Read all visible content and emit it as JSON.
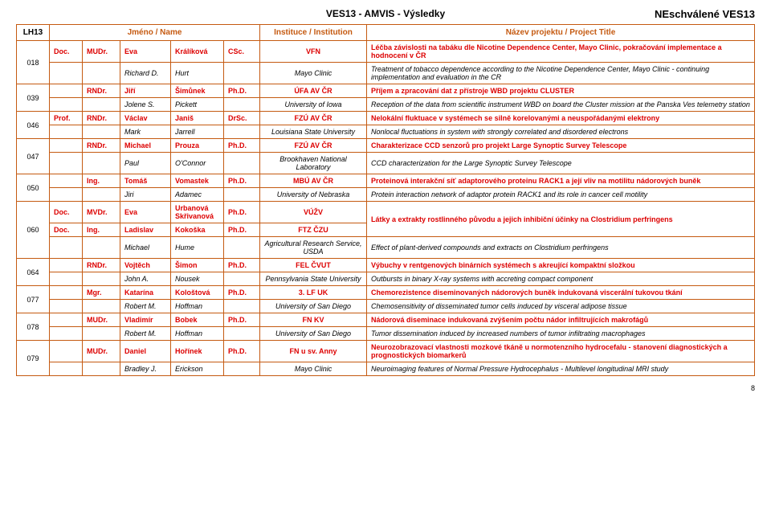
{
  "title_center": "VES13 - AMVIS - Výsledky",
  "title_right": "NEschválené VES13",
  "page_number": "8",
  "headers": {
    "lh": "LH13",
    "name": "Jméno / Name",
    "inst": "Instituce / Institution",
    "proj": "Název projektu / Project Title"
  },
  "rows": [
    {
      "id": "018",
      "a": {
        "t1": "Doc.",
        "t2": "MUDr.",
        "fn": "Eva",
        "ln": "Králíková",
        "dg": "CSc.",
        "in": "VFN",
        "pr": "Léčba závislosti na tabáku dle Nicotine Dependence Center, Mayo Clinic, pokračování implementace a hodnocení v ČR"
      },
      "b": {
        "fn": "Richard D.",
        "ln": "Hurt",
        "in": "Mayo Clinic",
        "pr": "Treatment of tobacco dependence according to the Nicotine Dependence Center, Mayo Clinic - continuing implementation and evaluation in the CR"
      }
    },
    {
      "id": "039",
      "a": {
        "t2": "RNDr.",
        "fn": "Jiří",
        "ln": "Šimůnek",
        "dg": "Ph.D.",
        "in": "ÚFA AV ČR",
        "pr": "Příjem a zpracování dat z přístroje WBD projektu CLUSTER"
      },
      "b": {
        "fn": "Jolene S.",
        "ln": "Pickett",
        "in": "University of Iowa",
        "pr": "Reception of the data from scientific instrument WBD on board the Cluster mission at the Panska Ves telemetry station"
      }
    },
    {
      "id": "046",
      "a": {
        "t1": "Prof.",
        "t2": "RNDr.",
        "fn": "Václav",
        "ln": "Janiš",
        "dg": "DrSc.",
        "in": "FZÚ AV ČR",
        "pr": "Nelokální fluktuace v systémech se silně korelovanými a neuspořádanými elektrony"
      },
      "b": {
        "fn": "Mark",
        "ln": "Jarrell",
        "in": "Louisiana State University",
        "pr": "Nonlocal fluctuations in system with strongly correlated and disordered electrons"
      }
    },
    {
      "id": "047",
      "a": {
        "t2": "RNDr.",
        "fn": "Michael",
        "ln": "Prouza",
        "dg": "Ph.D.",
        "in": "FZÚ AV ČR",
        "pr": "Charakterizace CCD senzorů pro projekt Large Synoptic Survey Telescope"
      },
      "b": {
        "fn": "Paul",
        "ln": "O'Connor",
        "in": "Brookhaven National Laboratory",
        "pr": "CCD characterization for the Large Synoptic Survey Telescope"
      }
    },
    {
      "id": "050",
      "a": {
        "t2": "Ing.",
        "fn": "Tomáš",
        "ln": "Vomastek",
        "dg": "Ph.D.",
        "in": "MBÚ AV ČR",
        "pr": "Proteinová interakční síť adaptorového proteinu RACK1 a její vliv na motilitu nádorových buněk"
      },
      "b": {
        "fn": "Jiri",
        "ln": "Adamec",
        "in": "University of Nebraska",
        "pr": "Protein interaction network of adaptor protein RACK1 and its role in cancer cell motility"
      }
    },
    {
      "id": "060",
      "a": {
        "t1": "Doc.",
        "t2": "MVDr.",
        "fn": "Eva",
        "ln": "Urbanová Skřivanová",
        "dg": "Ph.D.",
        "in": "VÚŽV",
        "pr": "Látky a extrakty rostlinného původu a jejich inhibiční účinky na Clostridium perfringens"
      },
      "a2": {
        "t1": "Doc.",
        "t2": "Ing.",
        "fn": "Ladislav",
        "ln": "Kokoška",
        "dg": "Ph.D.",
        "in": "FTZ ČZU"
      },
      "b": {
        "fn": "Michael",
        "ln": "Hume",
        "in": "Agricultural Research Service, USDA",
        "pr": "Effect of plant-derived compounds and extracts on Clostridium perfringens"
      }
    },
    {
      "id": "064",
      "a": {
        "t2": "RNDr.",
        "fn": "Vojtěch",
        "ln": "Šimon",
        "dg": "Ph.D.",
        "in": "FEL ČVUT",
        "pr": "Výbuchy v rentgenových binárních systémech s akreující kompaktní složkou"
      },
      "b": {
        "fn": "John A.",
        "ln": "Nousek",
        "in": "Pennsylvania State University",
        "pr": "Outbursts in binary X-ray systems with accreting compact component"
      }
    },
    {
      "id": "077",
      "a": {
        "t2": "Mgr.",
        "fn": "Katarína",
        "ln": "Kološtová",
        "dg": "Ph.D.",
        "in": "3. LF UK",
        "pr": "Chemorezistence diseminovaných nádorových buněk indukovaná viscerální tukovou tkání"
      },
      "b": {
        "fn": "Robert M.",
        "ln": "Hoffman",
        "in": "University of San Diego",
        "pr": "Chemosensitivity of disseminated tumor cells induced by visceral adipose tissue"
      }
    },
    {
      "id": "078",
      "a": {
        "t2": "MUDr.",
        "fn": "Vladimír",
        "ln": "Bobek",
        "dg": "Ph.D.",
        "in": "FN KV",
        "pr": "Nádorová diseminace indukovaná zvýšením počtu nádor infiltrujících makrofágů"
      },
      "b": {
        "fn": "Robert M.",
        "ln": "Hoffman",
        "in": "University of San Diego",
        "pr": "Tumor dissemination induced by increased numbers of tumor infiltrating macrophages"
      }
    },
    {
      "id": "079",
      "a": {
        "t2": "MUDr.",
        "fn": "Daniel",
        "ln": "Hořínek",
        "dg": "Ph.D.",
        "in": "FN u sv. Anny",
        "pr": "Neurozobrazovací vlastnosti mozkové tkáně u normotenzního hydrocefalu - stanovení diagnostických a prognostických biomarkerů"
      },
      "b": {
        "fn": "Bradley J.",
        "ln": "Erickson",
        "in": "Mayo Clinic",
        "pr": "Neuroimaging features of Normal Pressure Hydrocephalus - Multilevel longitudinal MRI study"
      }
    }
  ]
}
